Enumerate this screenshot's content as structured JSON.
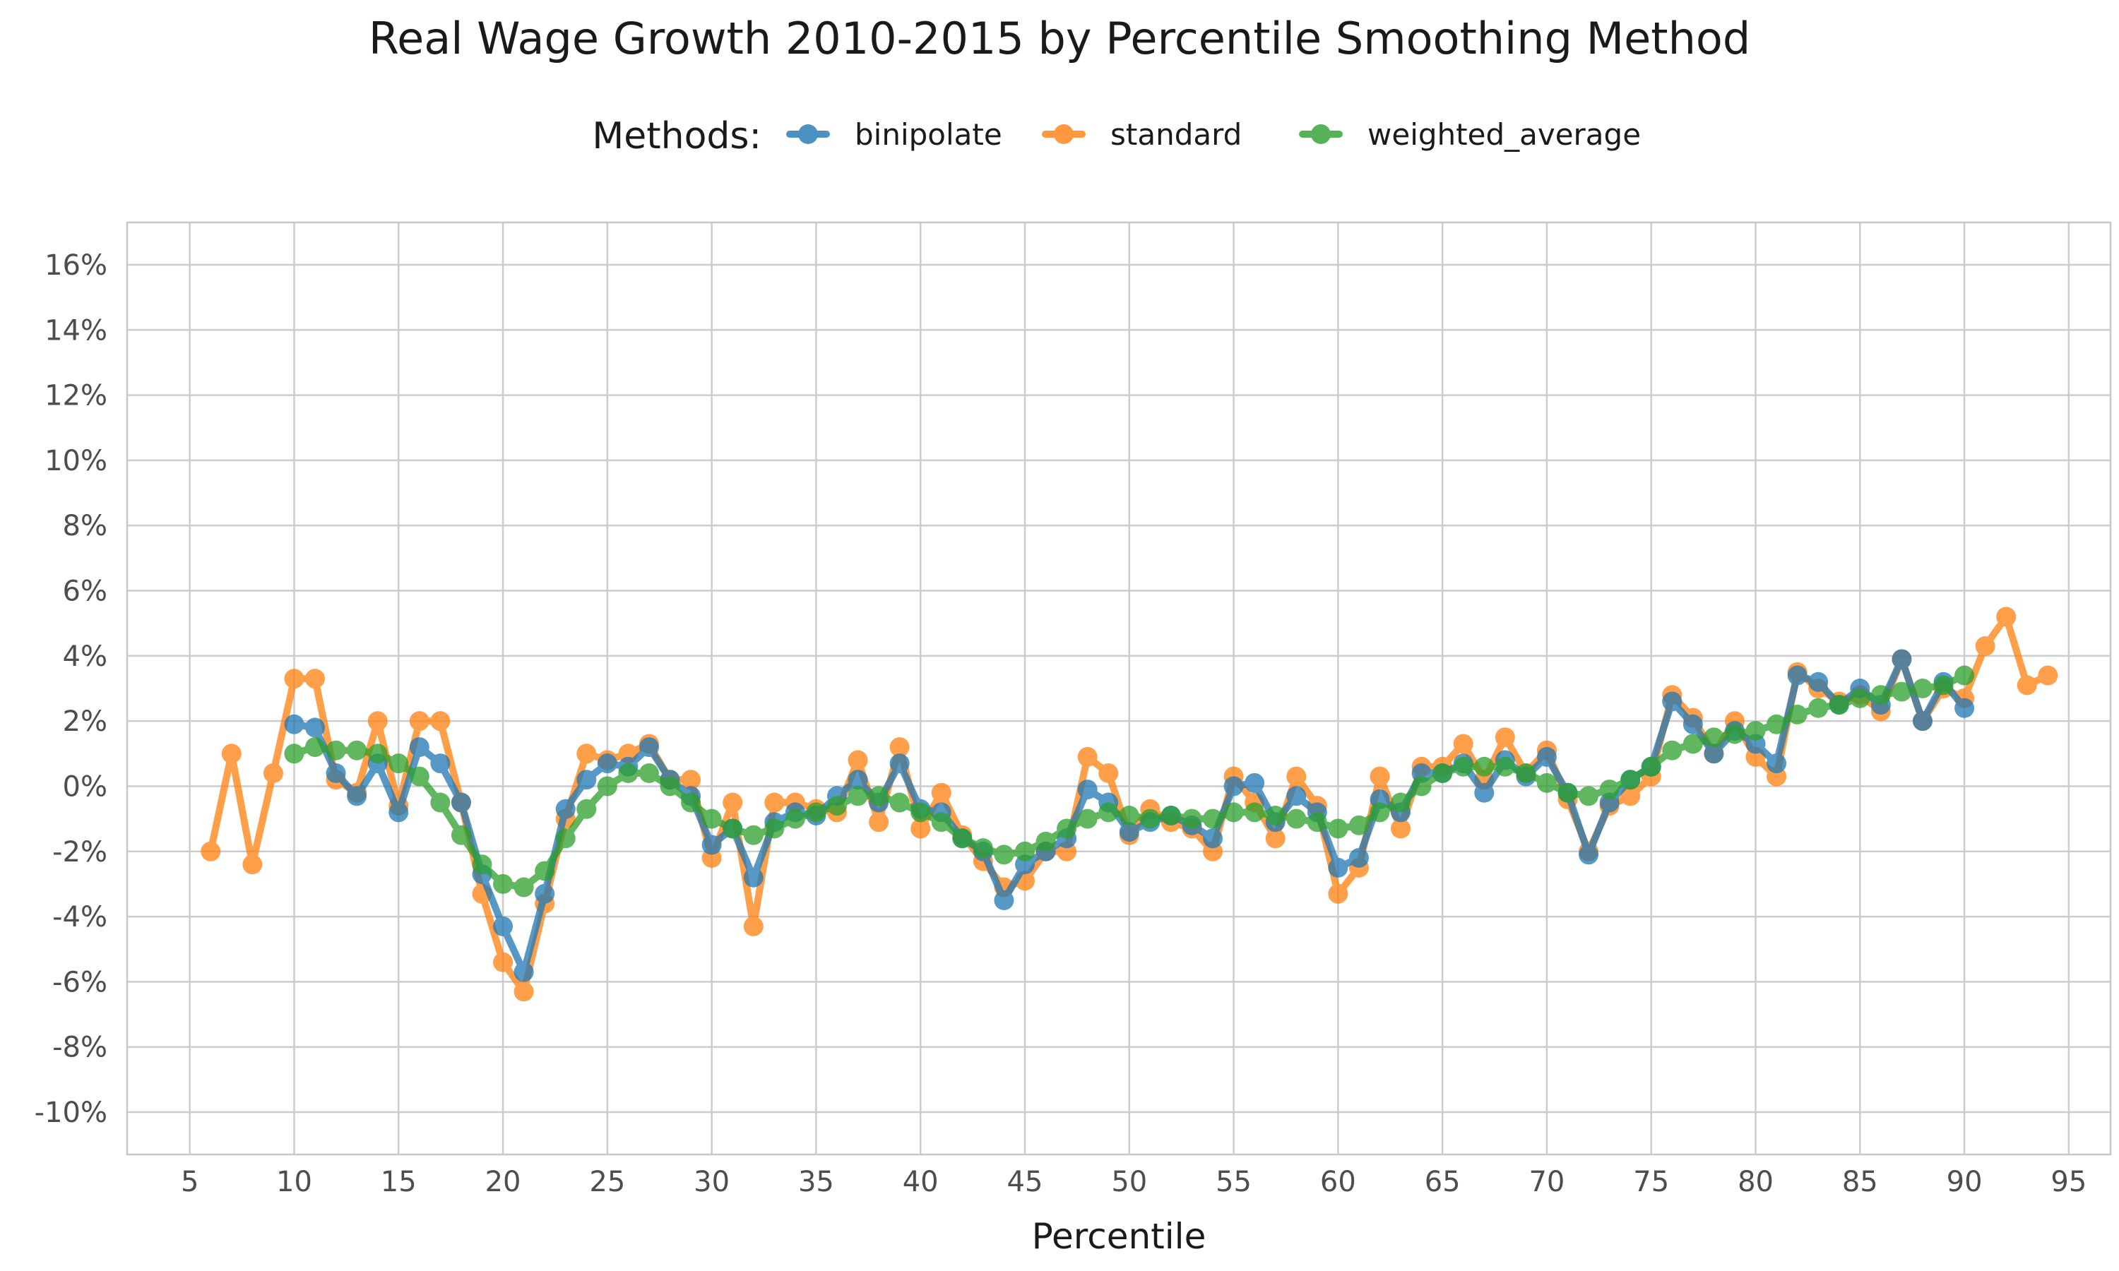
{
  "chart_data": {
    "type": "line",
    "title": "Real Wage Growth 2010-2015 by Percentile Smoothing Method",
    "xlabel": "Percentile",
    "ylabel": "",
    "xlim": [
      2,
      97
    ],
    "ylim": [
      -11.3,
      17.3
    ],
    "xticks": [
      5,
      10,
      15,
      20,
      25,
      30,
      35,
      40,
      45,
      50,
      55,
      60,
      65,
      70,
      75,
      80,
      85,
      90,
      95
    ],
    "xtick_labels": [
      "5",
      "10",
      "15",
      "20",
      "25",
      "30",
      "35",
      "40",
      "45",
      "50",
      "55",
      "60",
      "65",
      "70",
      "75",
      "80",
      "85",
      "90",
      "95"
    ],
    "yticks": [
      -10,
      -8,
      -6,
      -4,
      -2,
      0,
      2,
      4,
      6,
      8,
      10,
      12,
      14,
      16
    ],
    "ytick_labels": [
      "-10%",
      "-8%",
      "-6%",
      "-4%",
      "-2%",
      "0%",
      "2%",
      "4%",
      "6%",
      "8%",
      "10%",
      "12%",
      "14%",
      "16%"
    ],
    "grid": true,
    "legend": {
      "title": "Methods:",
      "placement": "top-center"
    },
    "series": [
      {
        "name": "standard",
        "color": "#ff7f0e",
        "x": [
          6,
          7,
          8,
          9,
          10,
          11,
          12,
          13,
          14,
          15,
          16,
          17,
          18,
          19,
          20,
          21,
          22,
          23,
          24,
          25,
          26,
          27,
          28,
          29,
          30,
          31,
          32,
          33,
          34,
          35,
          36,
          37,
          38,
          39,
          40,
          41,
          42,
          43,
          44,
          45,
          46,
          47,
          48,
          49,
          50,
          51,
          52,
          53,
          54,
          55,
          56,
          57,
          58,
          59,
          60,
          61,
          62,
          63,
          64,
          65,
          66,
          67,
          68,
          69,
          70,
          71,
          72,
          73,
          74,
          75,
          76,
          77,
          78,
          79,
          80,
          81,
          82,
          83,
          84,
          85,
          86,
          87,
          88,
          89,
          90,
          91,
          92,
          93,
          94
        ],
        "values": [
          -2.0,
          1.0,
          -2.4,
          0.4,
          3.3,
          3.3,
          0.2,
          -0.2,
          2.0,
          -0.6,
          2.0,
          2.0,
          -0.5,
          -3.3,
          -5.4,
          -6.3,
          -3.6,
          -1.0,
          1.0,
          0.8,
          1.0,
          1.3,
          0.2,
          0.2,
          -2.2,
          -0.5,
          -4.3,
          -0.5,
          -0.5,
          -0.7,
          -0.8,
          0.8,
          -1.1,
          1.2,
          -1.3,
          -0.2,
          -1.5,
          -2.3,
          -3.1,
          -2.9,
          -2.0,
          -2.0,
          0.9,
          0.4,
          -1.5,
          -0.7,
          -1.1,
          -1.3,
          -2.0,
          0.3,
          -0.5,
          -1.6,
          0.3,
          -0.6,
          -3.3,
          -2.5,
          0.3,
          -1.3,
          0.6,
          0.6,
          1.3,
          0.2,
          1.5,
          0.4,
          1.1,
          -0.4,
          -2.0,
          -0.6,
          -0.3,
          0.3,
          2.8,
          2.1,
          1.0,
          2.0,
          0.9,
          0.3,
          3.5,
          3.0,
          2.6,
          2.8,
          2.3,
          3.9,
          2.0,
          3.0,
          2.7,
          4.3,
          5.2,
          3.1,
          3.4
        ]
      },
      {
        "name": "binipolate",
        "color": "#1f77b4",
        "x": [
          10,
          11,
          12,
          13,
          14,
          15,
          16,
          17,
          18,
          19,
          20,
          21,
          22,
          23,
          24,
          25,
          26,
          27,
          28,
          29,
          30,
          31,
          32,
          33,
          34,
          35,
          36,
          37,
          38,
          39,
          40,
          41,
          42,
          43,
          44,
          45,
          46,
          47,
          48,
          49,
          50,
          51,
          52,
          53,
          54,
          55,
          56,
          57,
          58,
          59,
          60,
          61,
          62,
          63,
          64,
          65,
          66,
          67,
          68,
          69,
          70,
          71,
          72,
          73,
          74,
          75,
          76,
          77,
          78,
          79,
          80,
          81,
          82,
          83,
          84,
          85,
          86,
          87,
          88,
          89,
          90
        ],
        "values": [
          1.9,
          1.8,
          0.4,
          -0.3,
          0.7,
          -0.8,
          1.2,
          0.7,
          -0.5,
          -2.7,
          -4.3,
          -5.7,
          -3.3,
          -0.7,
          0.2,
          0.7,
          0.6,
          1.2,
          0.2,
          -0.3,
          -1.8,
          -1.3,
          -2.8,
          -1.1,
          -0.8,
          -0.9,
          -0.3,
          0.2,
          -0.5,
          0.7,
          -0.7,
          -0.8,
          -1.6,
          -2.0,
          -3.5,
          -2.4,
          -2.0,
          -1.6,
          -0.1,
          -0.5,
          -1.4,
          -1.1,
          -0.9,
          -1.2,
          -1.6,
          0.0,
          0.1,
          -1.1,
          -0.3,
          -0.8,
          -2.5,
          -2.2,
          -0.4,
          -0.8,
          0.4,
          0.4,
          0.7,
          -0.2,
          0.8,
          0.3,
          0.9,
          -0.2,
          -2.1,
          -0.5,
          0.2,
          0.6,
          2.6,
          1.9,
          1.0,
          1.7,
          1.3,
          0.7,
          3.4,
          3.2,
          2.5,
          3.0,
          2.5,
          3.9,
          2.0,
          3.2,
          2.4
        ]
      },
      {
        "name": "weighted_average",
        "color": "#2ca02c",
        "x": [
          10,
          11,
          12,
          13,
          14,
          15,
          16,
          17,
          18,
          19,
          20,
          21,
          22,
          23,
          24,
          25,
          26,
          27,
          28,
          29,
          30,
          31,
          32,
          33,
          34,
          35,
          36,
          37,
          38,
          39,
          40,
          41,
          42,
          43,
          44,
          45,
          46,
          47,
          48,
          49,
          50,
          51,
          52,
          53,
          54,
          55,
          56,
          57,
          58,
          59,
          60,
          61,
          62,
          63,
          64,
          65,
          66,
          67,
          68,
          69,
          70,
          71,
          72,
          73,
          74,
          75,
          76,
          77,
          78,
          79,
          80,
          81,
          82,
          83,
          84,
          85,
          86,
          87,
          88,
          89,
          90
        ],
        "values": [
          1.0,
          1.2,
          1.1,
          1.1,
          1.0,
          0.7,
          0.3,
          -0.5,
          -1.5,
          -2.4,
          -3.0,
          -3.1,
          -2.6,
          -1.6,
          -0.7,
          0.0,
          0.4,
          0.4,
          0.0,
          -0.5,
          -1.0,
          -1.3,
          -1.5,
          -1.3,
          -1.0,
          -0.8,
          -0.6,
          -0.3,
          -0.3,
          -0.5,
          -0.8,
          -1.1,
          -1.6,
          -1.9,
          -2.1,
          -2.0,
          -1.7,
          -1.3,
          -1.0,
          -0.8,
          -0.9,
          -1.0,
          -0.9,
          -1.0,
          -1.0,
          -0.8,
          -0.8,
          -0.9,
          -1.0,
          -1.1,
          -1.3,
          -1.2,
          -0.8,
          -0.5,
          0.0,
          0.4,
          0.6,
          0.6,
          0.6,
          0.4,
          0.1,
          -0.2,
          -0.3,
          -0.1,
          0.2,
          0.6,
          1.1,
          1.3,
          1.5,
          1.6,
          1.7,
          1.9,
          2.2,
          2.4,
          2.5,
          2.7,
          2.8,
          2.9,
          3.0,
          3.1,
          3.4
        ]
      }
    ]
  }
}
